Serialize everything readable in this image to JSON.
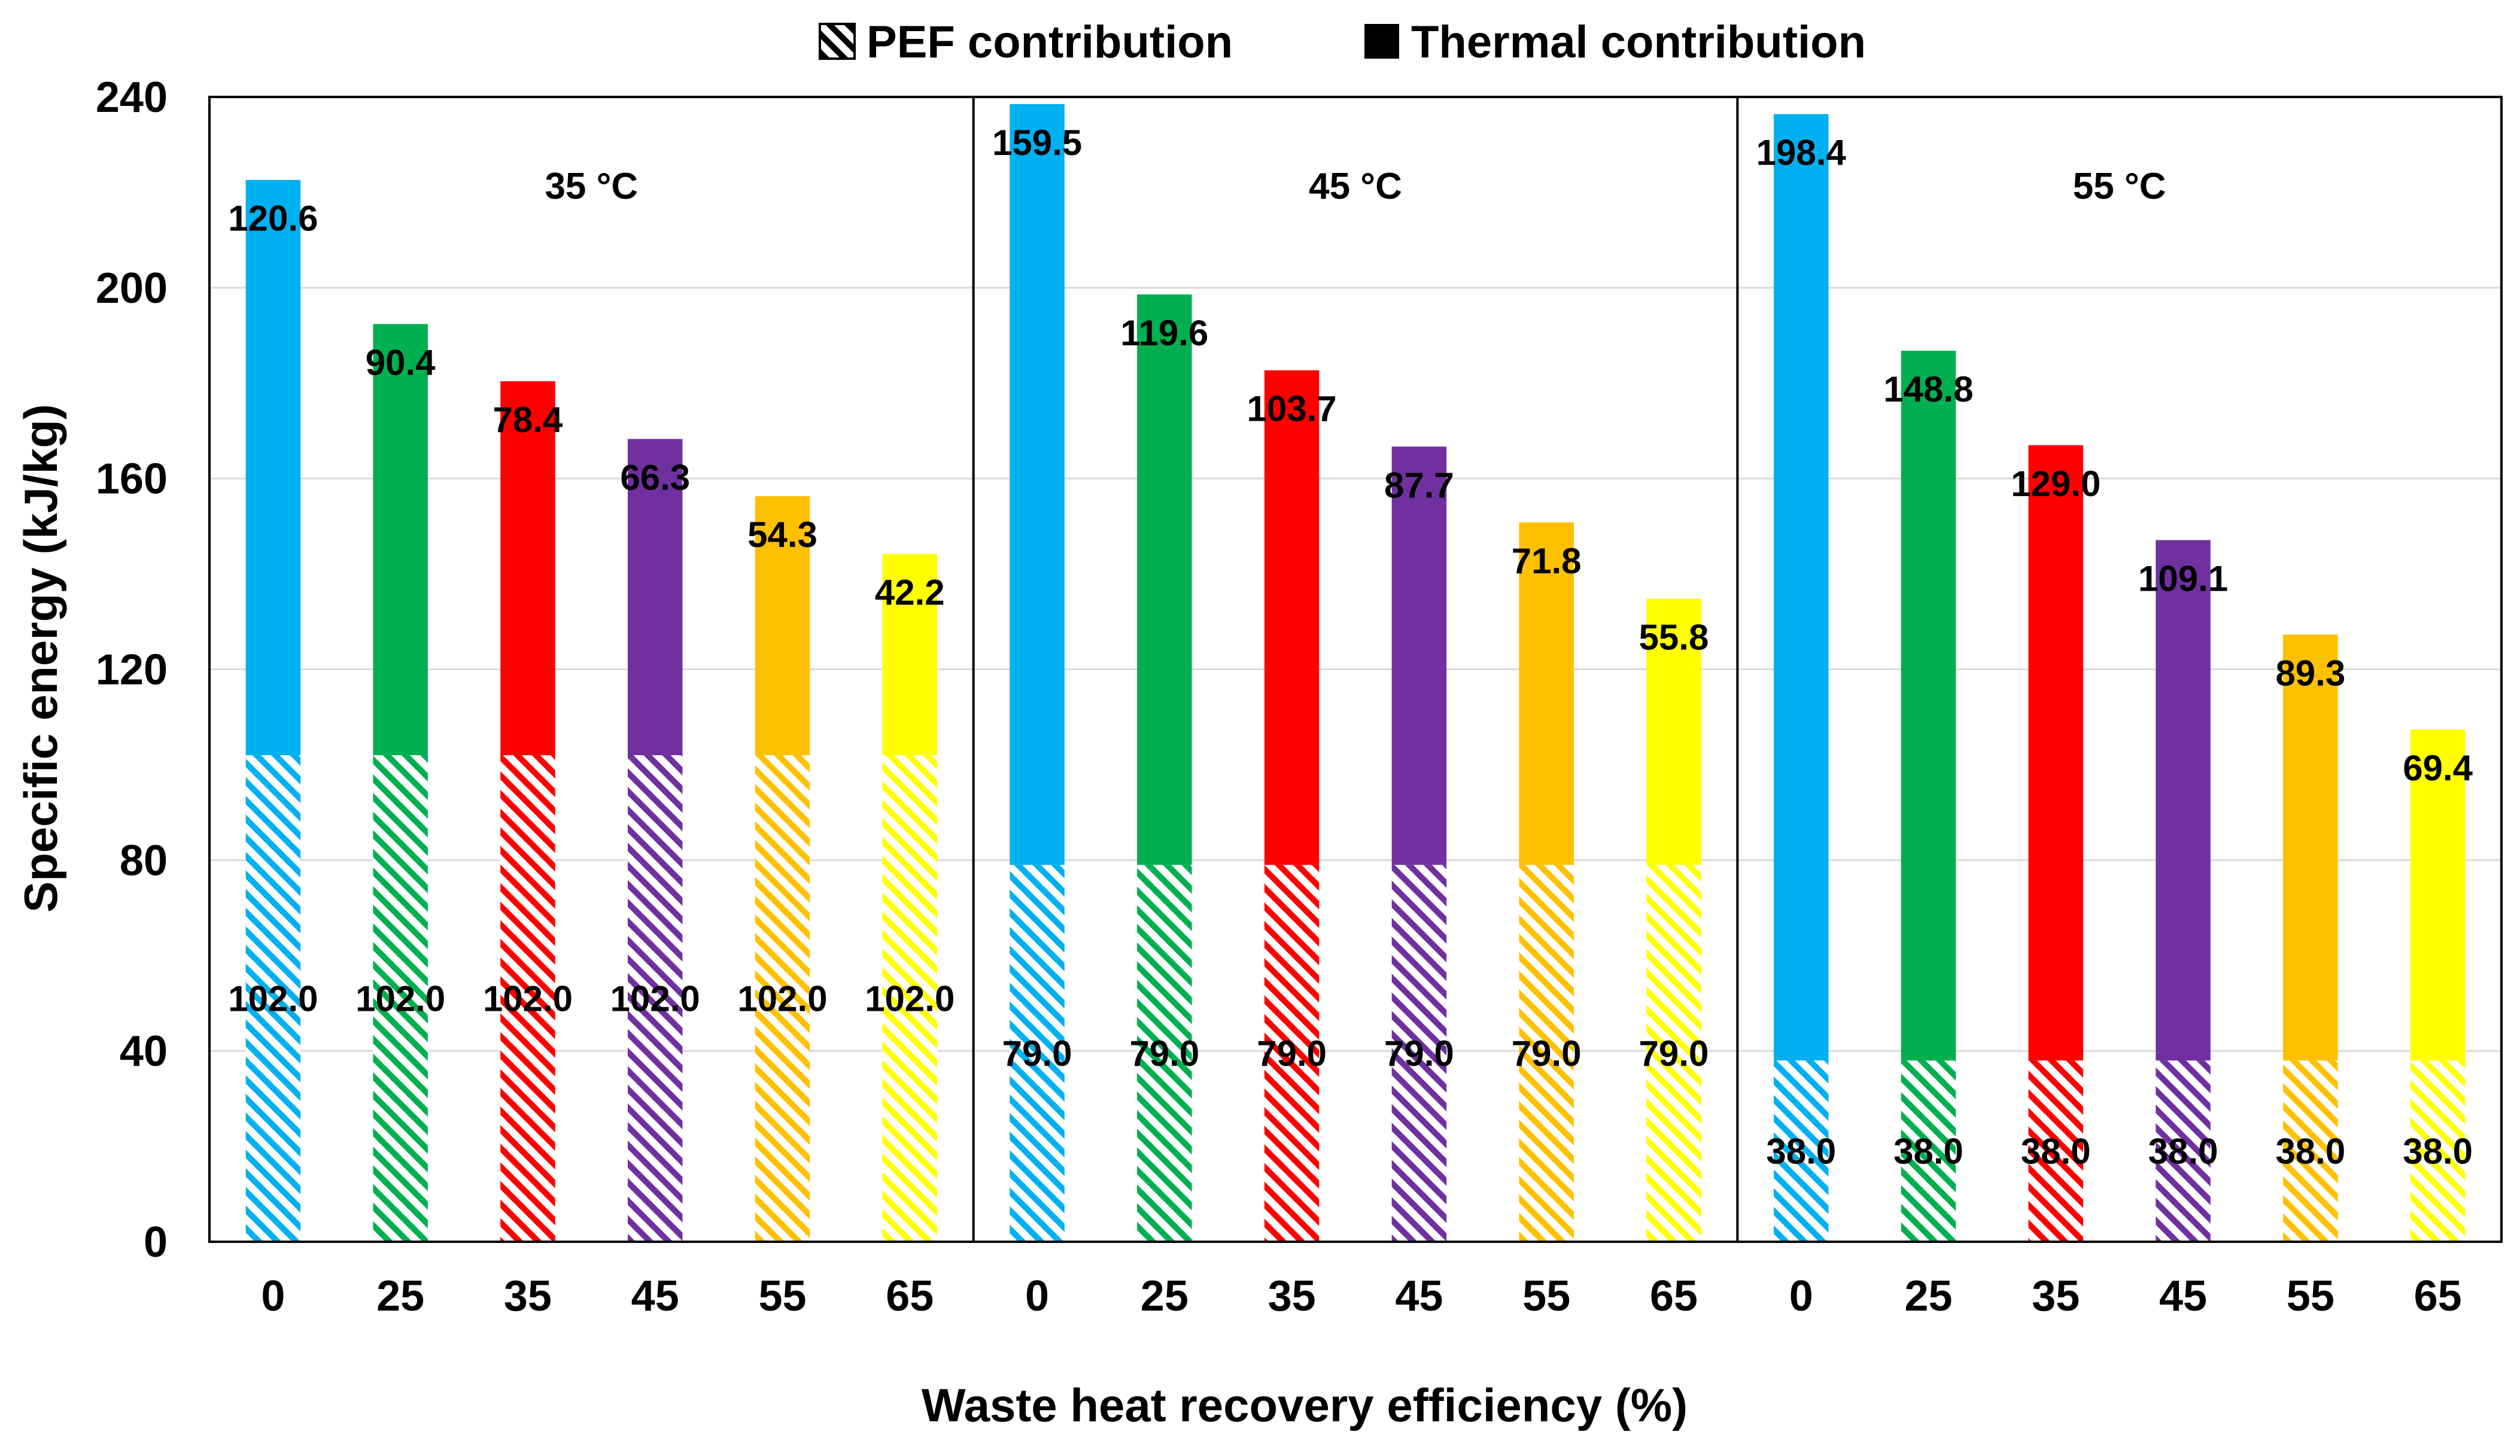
{
  "chart_data": {
    "type": "bar",
    "stacked": true,
    "ylabel": "Specific energy (kJ/kg)",
    "xlabel": "Waste heat recovery efficiency (%)",
    "ylim": [
      0,
      240
    ],
    "yticks": [
      0,
      40,
      80,
      120,
      160,
      200,
      240
    ],
    "grid": true,
    "legend": {
      "placement": "top-center",
      "items": [
        {
          "name": "PEF contribution",
          "style": "hatched"
        },
        {
          "name": "Thermal contribution",
          "style": "solid"
        }
      ]
    },
    "categories": [
      "0",
      "25",
      "35",
      "45",
      "55",
      "65"
    ],
    "category_colors": [
      "#00B0F0",
      "#00B050",
      "#FF0000",
      "#7030A0",
      "#FFC000",
      "#FFFF00"
    ],
    "panels": [
      {
        "label": "35 °C",
        "pef_labels": [
          "102.0",
          "102.0",
          "102.0",
          "102.0",
          "102.0",
          "102.0"
        ],
        "thermal_labels": [
          "120.6",
          "90.4",
          "78.4",
          "66.3",
          "54.3",
          "42.2"
        ],
        "series": [
          {
            "name": "PEF contribution",
            "values": [
              102.0,
              102.0,
              102.0,
              102.0,
              102.0,
              102.0
            ]
          },
          {
            "name": "Thermal contribution",
            "values": [
              120.6,
              90.4,
              78.4,
              66.3,
              54.3,
              42.2
            ]
          }
        ]
      },
      {
        "label": "45 °C",
        "pef_labels": [
          "79.0",
          "79.0",
          "79.0",
          "79.0",
          "79.0",
          "79.0"
        ],
        "thermal_labels": [
          "159.5",
          "119.6",
          "103.7",
          "87.7",
          "71.8",
          "55.8"
        ],
        "series": [
          {
            "name": "PEF contribution",
            "values": [
              79.0,
              79.0,
              79.0,
              79.0,
              79.0,
              79.0
            ]
          },
          {
            "name": "Thermal contribution",
            "values": [
              159.5,
              119.6,
              103.7,
              87.7,
              71.8,
              55.8
            ]
          }
        ]
      },
      {
        "label": "55 °C",
        "pef_labels": [
          "38.0",
          "38.0",
          "38.0",
          "38.0",
          "38.0",
          "38.0"
        ],
        "thermal_labels": [
          "198.4",
          "148.8",
          "129.0",
          "109.1",
          "89.3",
          "69.4"
        ],
        "series": [
          {
            "name": "PEF contribution",
            "values": [
              38.0,
              38.0,
              38.0,
              38.0,
              38.0,
              38.0
            ]
          },
          {
            "name": "Thermal contribution",
            "values": [
              198.4,
              148.8,
              129.0,
              109.1,
              89.3,
              69.4
            ]
          }
        ]
      }
    ]
  }
}
